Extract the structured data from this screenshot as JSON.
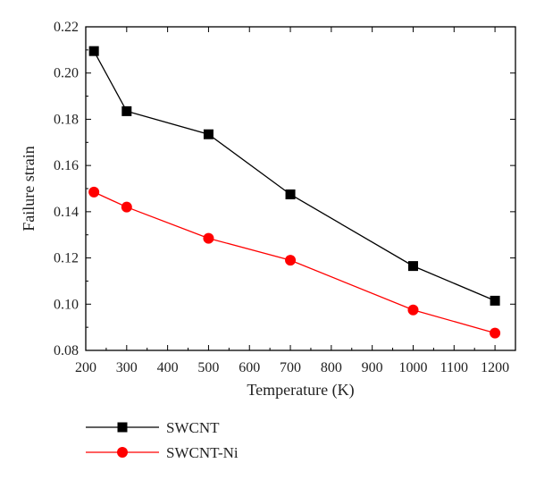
{
  "chart_data": {
    "type": "line",
    "title": "",
    "xlabel": "Temperature (K)",
    "ylabel": "Failure strain",
    "xlim": [
      200,
      1250
    ],
    "ylim": [
      0.08,
      0.22
    ],
    "xticks": [
      200,
      300,
      400,
      500,
      600,
      700,
      800,
      900,
      1000,
      1100,
      1200
    ],
    "yticks": [
      0.08,
      0.1,
      0.12,
      0.14,
      0.16,
      0.18,
      0.2,
      0.22
    ],
    "ytick_labels": [
      "0.08",
      "0.10",
      "0.12",
      "0.14",
      "0.16",
      "0.18",
      "0.20",
      "0.22"
    ],
    "grid": false,
    "legend_position": "below-left",
    "series": [
      {
        "name": "SWCNT",
        "marker": "square",
        "color": "#000000",
        "x": [
          220,
          300,
          500,
          700,
          1000,
          1200
        ],
        "y": [
          0.2095,
          0.1835,
          0.1735,
          0.1475,
          0.1165,
          0.1015
        ]
      },
      {
        "name": "SWCNT-Ni",
        "marker": "circle",
        "color": "#ff0000",
        "x": [
          220,
          300,
          500,
          700,
          1000,
          1200
        ],
        "y": [
          0.1485,
          0.142,
          0.1285,
          0.119,
          0.0975,
          0.0875
        ]
      }
    ]
  }
}
